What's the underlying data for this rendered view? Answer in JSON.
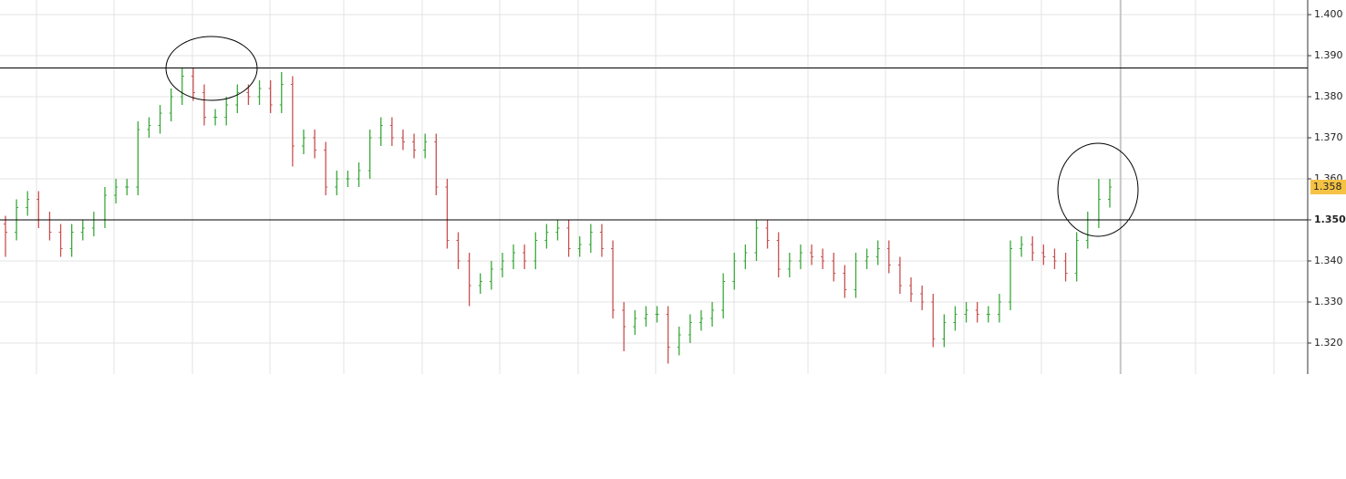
{
  "chart_data": {
    "type": "ohlc",
    "open": [
      1.349,
      1.347,
      1.353,
      1.355,
      1.35,
      1.347,
      1.343,
      1.347,
      1.348,
      1.35,
      1.356,
      1.358,
      1.358,
      1.372,
      1.373,
      1.376,
      1.38,
      1.385,
      1.381,
      1.375,
      1.375,
      1.378,
      1.381,
      1.38,
      1.382,
      1.378,
      1.383,
      1.368,
      1.37,
      1.367,
      1.358,
      1.36,
      1.36,
      1.362,
      1.37,
      1.373,
      1.37,
      1.369,
      1.367,
      1.369,
      1.358,
      1.345,
      1.34,
      1.334,
      1.335,
      1.338,
      1.34,
      1.342,
      1.34,
      1.345,
      1.347,
      1.348,
      1.343,
      1.344,
      1.347,
      1.343,
      1.328,
      1.324,
      1.326,
      1.327,
      1.327,
      1.319,
      1.322,
      1.325,
      1.326,
      1.328,
      1.335,
      1.34,
      1.342,
      1.348,
      1.345,
      1.338,
      1.34,
      1.342,
      1.341,
      1.34,
      1.337,
      1.333,
      1.34,
      1.341,
      1.343,
      1.339,
      1.334,
      1.332,
      1.33,
      1.321,
      1.325,
      1.327,
      1.328,
      1.327,
      1.327,
      1.33,
      1.343,
      1.344,
      1.342,
      1.341,
      1.34,
      1.337,
      1.345,
      1.35,
      1.355
    ],
    "high": [
      1.351,
      1.355,
      1.357,
      1.357,
      1.352,
      1.349,
      1.349,
      1.35,
      1.352,
      1.358,
      1.36,
      1.36,
      1.374,
      1.375,
      1.378,
      1.382,
      1.387,
      1.387,
      1.383,
      1.377,
      1.38,
      1.383,
      1.383,
      1.384,
      1.384,
      1.386,
      1.385,
      1.372,
      1.372,
      1.369,
      1.362,
      1.362,
      1.364,
      1.372,
      1.375,
      1.375,
      1.372,
      1.371,
      1.371,
      1.371,
      1.36,
      1.347,
      1.342,
      1.337,
      1.34,
      1.342,
      1.344,
      1.344,
      1.347,
      1.349,
      1.35,
      1.35,
      1.346,
      1.349,
      1.349,
      1.345,
      1.33,
      1.328,
      1.329,
      1.329,
      1.329,
      1.324,
      1.327,
      1.328,
      1.33,
      1.337,
      1.342,
      1.344,
      1.35,
      1.35,
      1.347,
      1.342,
      1.344,
      1.344,
      1.343,
      1.342,
      1.339,
      1.342,
      1.343,
      1.345,
      1.345,
      1.341,
      1.336,
      1.334,
      1.332,
      1.327,
      1.329,
      1.33,
      1.33,
      1.329,
      1.332,
      1.345,
      1.346,
      1.346,
      1.344,
      1.343,
      1.342,
      1.347,
      1.352,
      1.36,
      1.36
    ],
    "low": [
      1.341,
      1.345,
      1.351,
      1.348,
      1.345,
      1.341,
      1.341,
      1.345,
      1.346,
      1.348,
      1.354,
      1.356,
      1.356,
      1.37,
      1.371,
      1.374,
      1.378,
      1.379,
      1.373,
      1.373,
      1.373,
      1.376,
      1.378,
      1.378,
      1.376,
      1.376,
      1.363,
      1.366,
      1.365,
      1.356,
      1.356,
      1.358,
      1.358,
      1.36,
      1.368,
      1.368,
      1.367,
      1.365,
      1.365,
      1.356,
      1.343,
      1.338,
      1.329,
      1.332,
      1.333,
      1.336,
      1.338,
      1.338,
      1.338,
      1.343,
      1.345,
      1.341,
      1.341,
      1.342,
      1.341,
      1.326,
      1.318,
      1.322,
      1.324,
      1.325,
      1.315,
      1.317,
      1.32,
      1.323,
      1.324,
      1.326,
      1.333,
      1.338,
      1.34,
      1.343,
      1.336,
      1.336,
      1.338,
      1.339,
      1.338,
      1.335,
      1.331,
      1.331,
      1.338,
      1.339,
      1.337,
      1.332,
      1.33,
      1.328,
      1.319,
      1.319,
      1.323,
      1.325,
      1.325,
      1.325,
      1.325,
      1.328,
      1.341,
      1.34,
      1.339,
      1.338,
      1.335,
      1.335,
      1.343,
      1.348,
      1.353
    ],
    "close": [
      1.347,
      1.353,
      1.355,
      1.35,
      1.347,
      1.343,
      1.347,
      1.348,
      1.35,
      1.356,
      1.358,
      1.358,
      1.372,
      1.373,
      1.376,
      1.38,
      1.385,
      1.381,
      1.375,
      1.375,
      1.378,
      1.381,
      1.38,
      1.382,
      1.378,
      1.383,
      1.368,
      1.37,
      1.367,
      1.358,
      1.36,
      1.36,
      1.362,
      1.37,
      1.373,
      1.37,
      1.369,
      1.367,
      1.369,
      1.358,
      1.345,
      1.34,
      1.334,
      1.335,
      1.338,
      1.34,
      1.342,
      1.34,
      1.345,
      1.347,
      1.348,
      1.343,
      1.344,
      1.347,
      1.343,
      1.328,
      1.324,
      1.326,
      1.327,
      1.327,
      1.319,
      1.322,
      1.325,
      1.326,
      1.328,
      1.335,
      1.34,
      1.342,
      1.348,
      1.345,
      1.338,
      1.34,
      1.342,
      1.341,
      1.34,
      1.337,
      1.333,
      1.34,
      1.341,
      1.343,
      1.339,
      1.334,
      1.332,
      1.33,
      1.321,
      1.325,
      1.327,
      1.328,
      1.327,
      1.327,
      1.33,
      1.343,
      1.344,
      1.342,
      1.341,
      1.34,
      1.337,
      1.345,
      1.35,
      1.355,
      1.358
    ],
    "up_color": "#3aa83a",
    "down_color": "#c8504f",
    "ylim": [
      1.31244,
      1.40356
    ],
    "yticks": [
      {
        "value": 1.32,
        "label": "1.320"
      },
      {
        "value": 1.33,
        "label": "1.330"
      },
      {
        "value": 1.34,
        "label": "1.340"
      },
      {
        "value": 1.35,
        "label": "1.350"
      },
      {
        "value": 1.36,
        "label": "1.360"
      },
      {
        "value": 1.37,
        "label": "1.370"
      },
      {
        "value": 1.38,
        "label": "1.380"
      },
      {
        "value": 1.39,
        "label": "1.390"
      },
      {
        "value": 1.4,
        "label": "1.400"
      }
    ],
    "hlines": [
      1.387,
      1.35
    ],
    "last_price": 1.358,
    "grid": true
  }
}
